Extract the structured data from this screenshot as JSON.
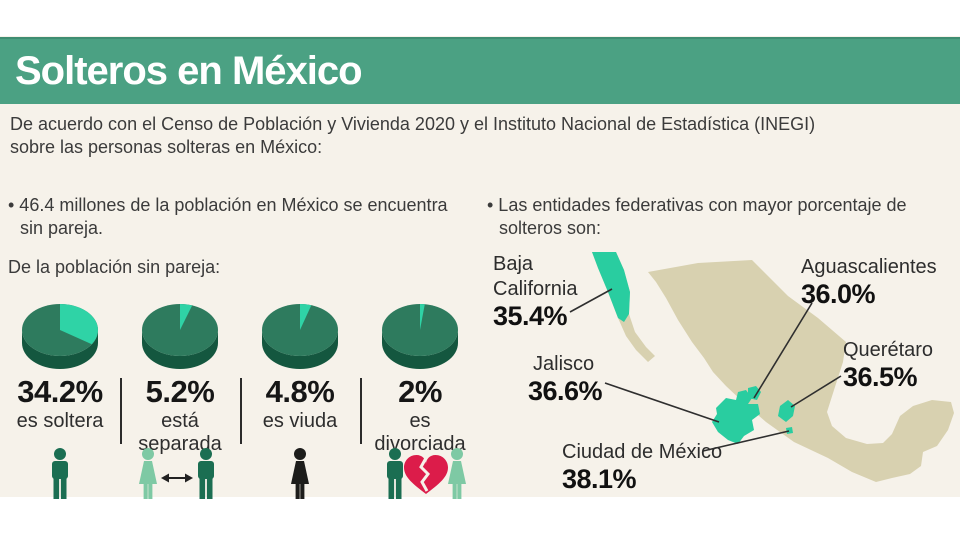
{
  "title": "Solteros en México",
  "intro": {
    "text": "De acuerdo con el Censo de Población y Vivienda 2020 y el Instituto Nacional de Estadística (INEGI)\nsobre las personas solteras en México:"
  },
  "left": {
    "bullet": "• 46.4 millones de la población en México se encuentra sin pareja.",
    "subtitle": "De la población sin pareja:"
  },
  "right": {
    "bullet": "• Las entidades federativas con mayor porcentaje de solteros son:"
  },
  "pies": [
    {
      "pct": 34.2,
      "pct_label": "34.2%",
      "desc": "es soltera"
    },
    {
      "pct": 5.2,
      "pct_label": "5.2%",
      "desc": "está\nseparada"
    },
    {
      "pct": 4.8,
      "pct_label": "4.8%",
      "desc": "es viuda"
    },
    {
      "pct": 2,
      "pct_label": "2%",
      "desc": "es\ndivorciada"
    }
  ],
  "map": {
    "states": [
      {
        "name": "Baja\nCalifornia",
        "pct_label": "35.4%"
      },
      {
        "name": "Aguascalientes",
        "pct_label": "36.0%"
      },
      {
        "name": "Querétaro",
        "pct_label": "36.5%"
      },
      {
        "name": "Jalisco",
        "pct_label": "36.6%"
      },
      {
        "name": "Ciudad de México",
        "pct_label": "38.1%"
      }
    ]
  },
  "chart_data": [
    {
      "type": "pie",
      "title": "De la población sin pareja",
      "unit": "%",
      "note": "four separate single-highlight 3D pies",
      "series": [
        {
          "name": "es soltera",
          "value": 34.2
        },
        {
          "name": "está separada",
          "value": 5.2
        },
        {
          "name": "es viuda",
          "value": 4.8
        },
        {
          "name": "es divorciada",
          "value": 2
        }
      ]
    },
    {
      "type": "heatmap",
      "title": "Entidades federativas con mayor porcentaje de solteros",
      "unit": "%",
      "note": "choropleth map of Mexico, highlighted states",
      "regions": [
        {
          "name": "Ciudad de México",
          "value": 38.1
        },
        {
          "name": "Jalisco",
          "value": 36.6
        },
        {
          "name": "Querétaro",
          "value": 36.5
        },
        {
          "name": "Aguascalientes",
          "value": 36.0
        },
        {
          "name": "Baja California",
          "value": 35.4
        }
      ]
    }
  ],
  "colors": {
    "header_green": "#4ba183",
    "accent_teal": "#2fd3a6",
    "pie_top": "#2e7b5e",
    "pie_rim": "#14573f",
    "figure_dark_green": "#1b6e52",
    "figure_light_green": "#7ec9a4",
    "figure_black": "#1d1d1b",
    "heart_red": "#dc1c4a",
    "map_land": "#d8d1b0",
    "map_highlight": "#29cda0",
    "background": "#f6f2ea",
    "text": "#3b3b3b"
  }
}
